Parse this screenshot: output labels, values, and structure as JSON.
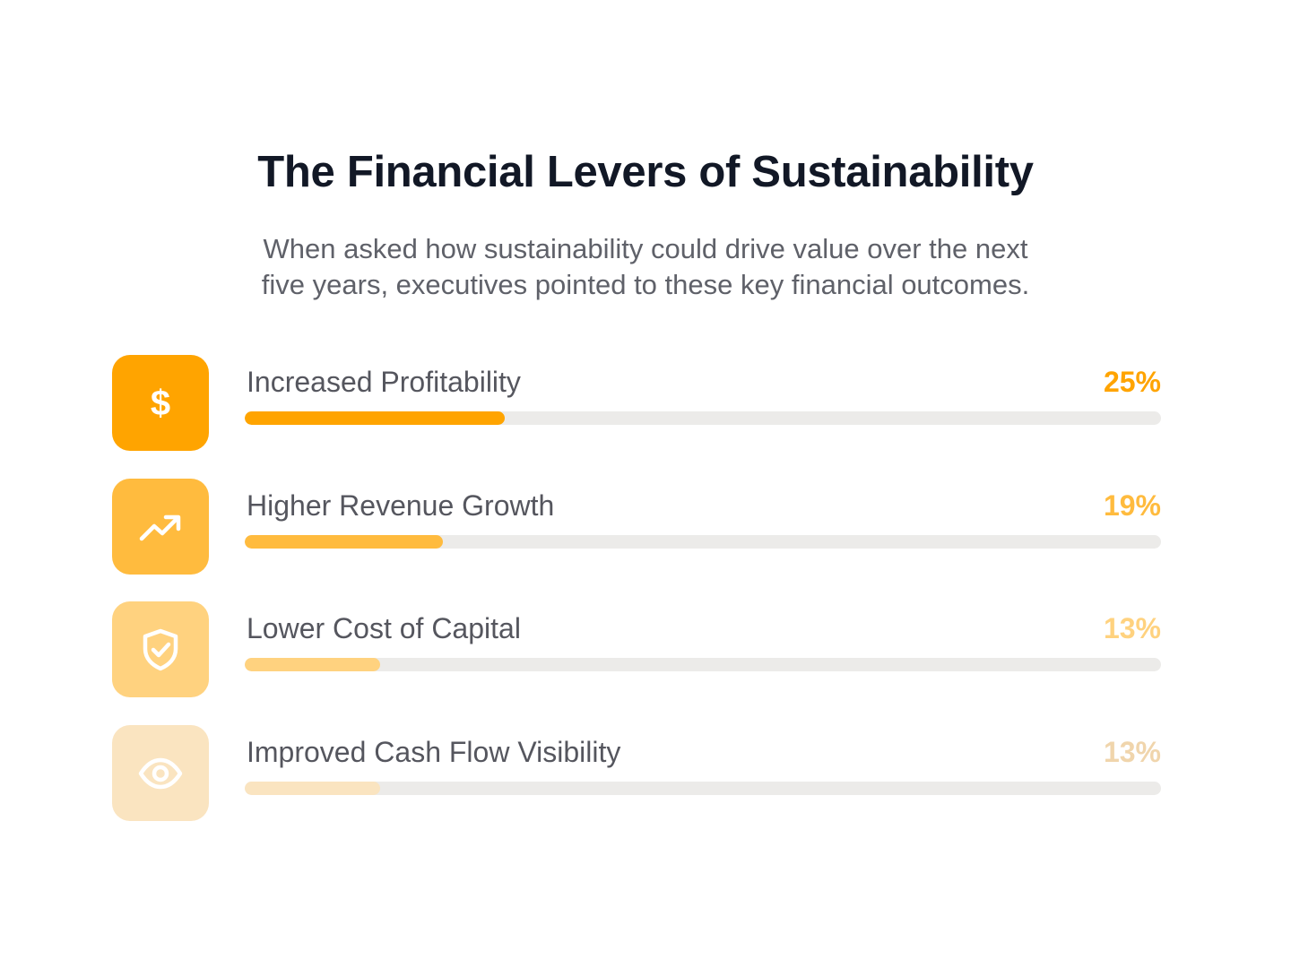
{
  "title": "The Financial Levers of Sustainability",
  "subtitle_lines": [
    "When asked how sustainability could drive value over the next",
    "five years, executives pointed to these key financial outcomes."
  ],
  "chart_data": {
    "type": "bar",
    "orientation": "horizontal",
    "title": "The Financial Levers of Sustainability",
    "categories": [
      "Increased Profitability",
      "Higher Revenue Growth",
      "Lower Cost of Capital",
      "Improved Cash Flow Visibility"
    ],
    "values": [
      25,
      19,
      13,
      13
    ],
    "value_labels": [
      "25%",
      "19%",
      "13%",
      "13%"
    ],
    "unit": "%",
    "xlim": [
      0,
      100
    ],
    "grid": false,
    "legend": "none",
    "icons": [
      "dollar-icon",
      "trending-up-icon",
      "shield-check-icon",
      "eye-icon"
    ],
    "colors": [
      "#FFA400",
      "#FFBB3E",
      "#FFD27F",
      "#FAE4C0"
    ],
    "value_colors": [
      "#FFA400",
      "#FFBB3E",
      "#FFD27F",
      "#F0D5AC"
    ],
    "track_color": "#ECEBE9"
  }
}
